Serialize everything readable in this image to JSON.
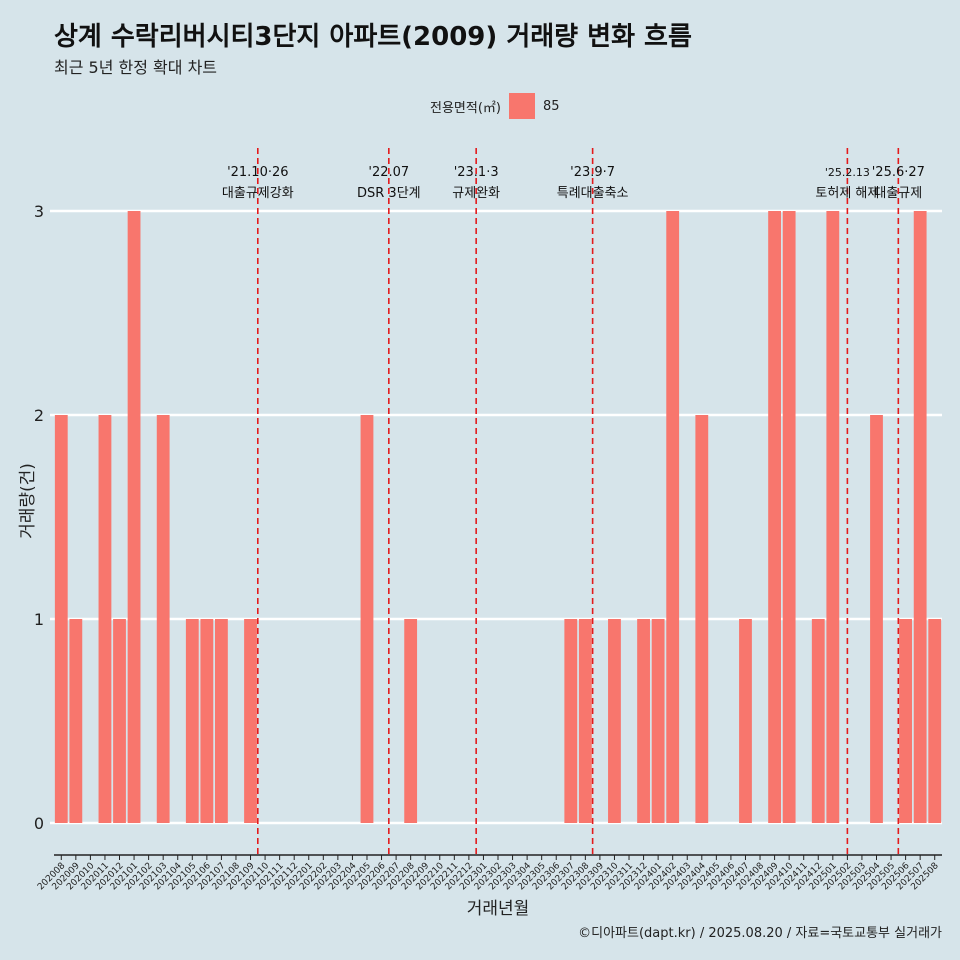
{
  "header": {
    "title": "상계 수락리버시티3단지 아파트(2009) 거래량 변화 흐름",
    "subtitle": "최근 5년 한정 확대 차트"
  },
  "legend": {
    "title": "전용면적(㎡)",
    "item_label": "85",
    "item_color": "#f8766d"
  },
  "footer": {
    "caption": "©디아파트(dapt.kr) / 2025.08.20 / 자료=국토교통부 실거래가"
  },
  "chart_data": {
    "type": "bar",
    "xlabel": "거래년월",
    "ylabel": "거래량(건)",
    "ylim": [
      0,
      3
    ],
    "yticks": [
      "0",
      "1",
      "2",
      "3"
    ],
    "bar_color": "#f8766d",
    "grid": true,
    "legend_position": "top",
    "categories": [
      "202008",
      "202009",
      "202010",
      "202011",
      "202012",
      "202101",
      "202102",
      "202103",
      "202104",
      "202105",
      "202106",
      "202107",
      "202108",
      "202109",
      "202110",
      "202111",
      "202112",
      "202201",
      "202202",
      "202203",
      "202204",
      "202205",
      "202206",
      "202207",
      "202208",
      "202209",
      "202210",
      "202211",
      "202212",
      "202301",
      "202302",
      "202303",
      "202304",
      "202305",
      "202306",
      "202307",
      "202308",
      "202309",
      "202310",
      "202311",
      "202312",
      "202401",
      "202402",
      "202403",
      "202404",
      "202405",
      "202406",
      "202407",
      "202408",
      "202409",
      "202410",
      "202411",
      "202412",
      "202501",
      "202502",
      "202503",
      "202504",
      "202505",
      "202506",
      "202507",
      "202508"
    ],
    "series": [
      {
        "values": [
          2,
          1,
          0,
          2,
          1,
          3,
          0,
          2,
          0,
          1,
          1,
          1,
          0,
          1,
          0,
          0,
          0,
          0,
          0,
          0,
          0,
          2,
          0,
          0,
          1,
          0,
          0,
          0,
          0,
          0,
          0,
          0,
          0,
          0,
          0,
          1,
          1,
          0,
          1,
          0,
          1,
          1,
          3,
          0,
          2,
          0,
          0,
          1,
          0,
          3,
          3,
          0,
          1,
          3,
          0,
          0,
          2,
          0,
          1,
          3,
          1
        ]
      }
    ],
    "annotations": [
      {
        "category": "202110",
        "date": "'21.10·26",
        "label": "대출규제강화"
      },
      {
        "category": "202207",
        "date": "'22.07",
        "label": "DSR 3단계"
      },
      {
        "category": "202301",
        "date": "'23.1·3",
        "label": "규제완화"
      },
      {
        "category": "202309",
        "date": "'23.9·7",
        "label": "특례대출축소"
      },
      {
        "category": "202502",
        "date": "'25.2.13",
        "label": "토허제 해제"
      },
      {
        "category": "202506",
        "date": "'25.6·27",
        "label": "대출규제"
      }
    ]
  }
}
